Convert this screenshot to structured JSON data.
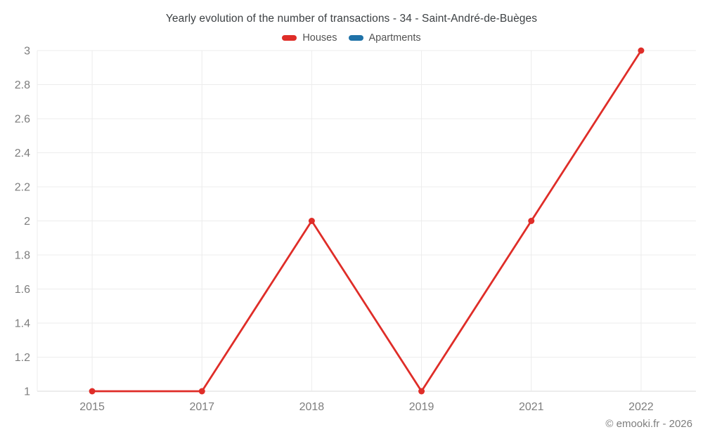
{
  "title": "Yearly evolution of the number of transactions - 34 - Saint-André-de-Buèges",
  "legend": [
    {
      "label": "Houses",
      "color": "#df2d28"
    },
    {
      "label": "Apartments",
      "color": "#1f72a8"
    }
  ],
  "footer": {
    "copyright": "© emooki.fr - 2026"
  },
  "chart_data": {
    "type": "line",
    "title": "Yearly evolution of the number of transactions - 34 - Saint-André-de-Buèges",
    "categories": [
      "2015",
      "2017",
      "2018",
      "2019",
      "2021",
      "2022"
    ],
    "series": [
      {
        "name": "Houses",
        "color": "#df2d28",
        "values": [
          1,
          1,
          2,
          1,
          2,
          3
        ]
      },
      {
        "name": "Apartments",
        "color": "#1f72a8",
        "values": []
      }
    ],
    "xlabel": "",
    "ylabel": "",
    "ylim": [
      1,
      3
    ],
    "yticks": [
      "1",
      "1.2",
      "1.4",
      "1.6",
      "1.8",
      "2",
      "2.2",
      "2.4",
      "2.6",
      "2.8",
      "3"
    ],
    "grid": true,
    "legend_position": "top",
    "colors": {
      "gridline": "#ececec",
      "axis_line": "#d9d9d9",
      "tick_label": "#7d7d7d"
    }
  }
}
